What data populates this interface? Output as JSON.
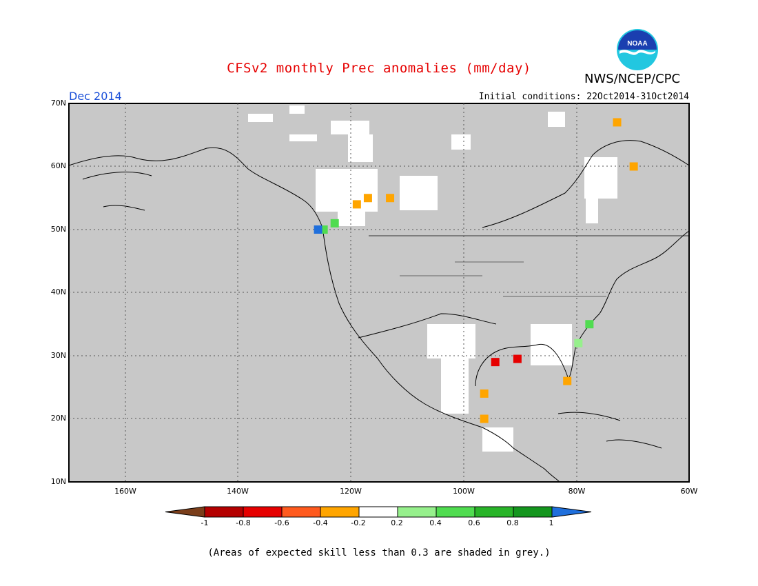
{
  "title": "CFSv2 monthly Prec anomalies (mm/day)",
  "agency": "NWS/NCEP/CPC",
  "logo_text": "NOAA",
  "month": "Dec 2014",
  "initial_conditions": "Initial conditions: 22Oct2014-31Oct2014",
  "lat_ticks": [
    "70N",
    "60N",
    "50N",
    "40N",
    "30N",
    "20N",
    "10N"
  ],
  "lon_ticks": [
    "160W",
    "140W",
    "120W",
    "100W",
    "80W",
    "60W"
  ],
  "colorbar": {
    "labels": [
      "-1",
      "-0.8",
      "-0.6",
      "-0.4",
      "-0.2",
      "0.2",
      "0.4",
      "0.6",
      "0.8",
      "1"
    ],
    "colors": [
      "#7a3e1a",
      "#b40000",
      "#e60000",
      "#ff5a1e",
      "#ffa500",
      "#ffffff",
      "#96f08c",
      "#50dc50",
      "#28b428",
      "#14961e",
      "#1f6fdc"
    ]
  },
  "footnote": "(Areas of expected skill less than 0.3 are shaded in grey.)",
  "chart_data": {
    "type": "heatmap",
    "xlim": [
      -172,
      -60
    ],
    "ylim": [
      10,
      70
    ],
    "grid": true,
    "skill_mask_color": "#c8c8c8",
    "anomaly_cells": [
      {
        "lon": -118,
        "lat": 55,
        "value": -0.3
      },
      {
        "lon": -114,
        "lat": 55,
        "value": -0.3
      },
      {
        "lon": -120,
        "lat": 54,
        "value": -0.3
      },
      {
        "lon": -126,
        "lat": 50,
        "value": 0.5
      },
      {
        "lon": -124,
        "lat": 51,
        "value": 0.4
      },
      {
        "lon": -127,
        "lat": 50,
        "value": 1.0
      },
      {
        "lon": -91,
        "lat": 29.5,
        "value": -0.8
      },
      {
        "lon": -95,
        "lat": 29,
        "value": -0.8
      },
      {
        "lon": -97,
        "lat": 24,
        "value": -0.3
      },
      {
        "lon": -97,
        "lat": 20,
        "value": -0.3
      },
      {
        "lon": -80,
        "lat": 32,
        "value": 0.3
      },
      {
        "lon": -78,
        "lat": 35,
        "value": 0.4
      },
      {
        "lon": -82,
        "lat": 26,
        "value": -0.3
      },
      {
        "lon": -70,
        "lat": 60,
        "value": -0.3
      },
      {
        "lon": -73,
        "lat": 67,
        "value": -0.3
      }
    ]
  }
}
